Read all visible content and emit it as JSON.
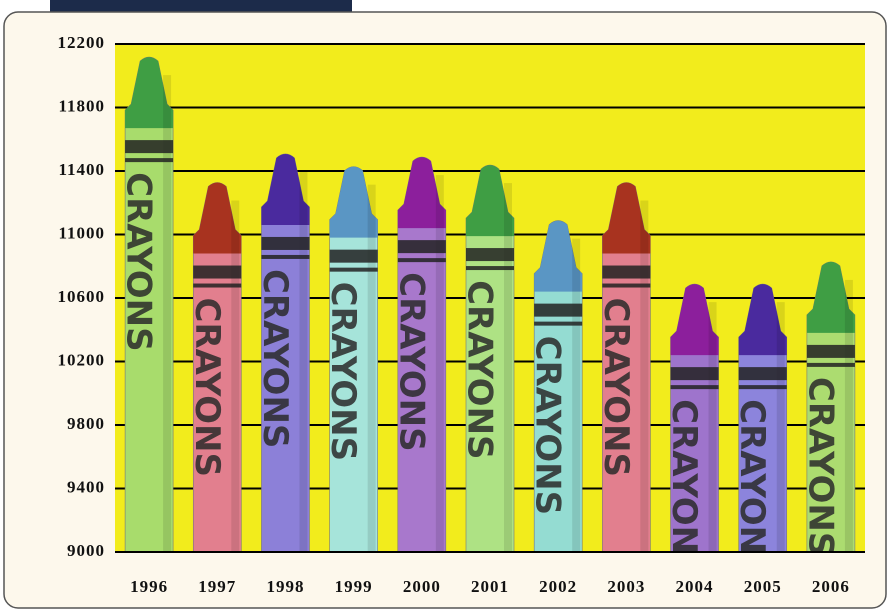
{
  "chart_data": {
    "type": "crayon-bar",
    "categories": [
      "1996",
      "1997",
      "1998",
      "1999",
      "2000",
      "2001",
      "2002",
      "2003",
      "2004",
      "2005",
      "2006"
    ],
    "values": [
      12130,
      11340,
      11520,
      11440,
      11500,
      11450,
      11100,
      11340,
      10700,
      10700,
      10840
    ],
    "bar_label": "CRAYONS",
    "colors": [
      "#a8dc6c",
      "#e27f8e",
      "#8c80d8",
      "#a6e4da",
      "#a878cc",
      "#aee284",
      "#94dcd2",
      "#e27f8e",
      "#9e74cc",
      "#8c84dc",
      "#acdc70"
    ],
    "tip_colors": [
      "#3f9e44",
      "#a8331f",
      "#4a2a9e",
      "#5a96c4",
      "#8c1f9c",
      "#3f9e44",
      "#5a96c4",
      "#a8331f",
      "#8c1f9c",
      "#4a2a9e",
      "#3f9e44"
    ],
    "ylim": [
      9000,
      12200
    ],
    "yticks": [
      9000,
      9400,
      9800,
      10200,
      10600,
      11000,
      11400,
      11800,
      12200
    ],
    "grid": true,
    "plot_background": "#f2ec1c"
  }
}
